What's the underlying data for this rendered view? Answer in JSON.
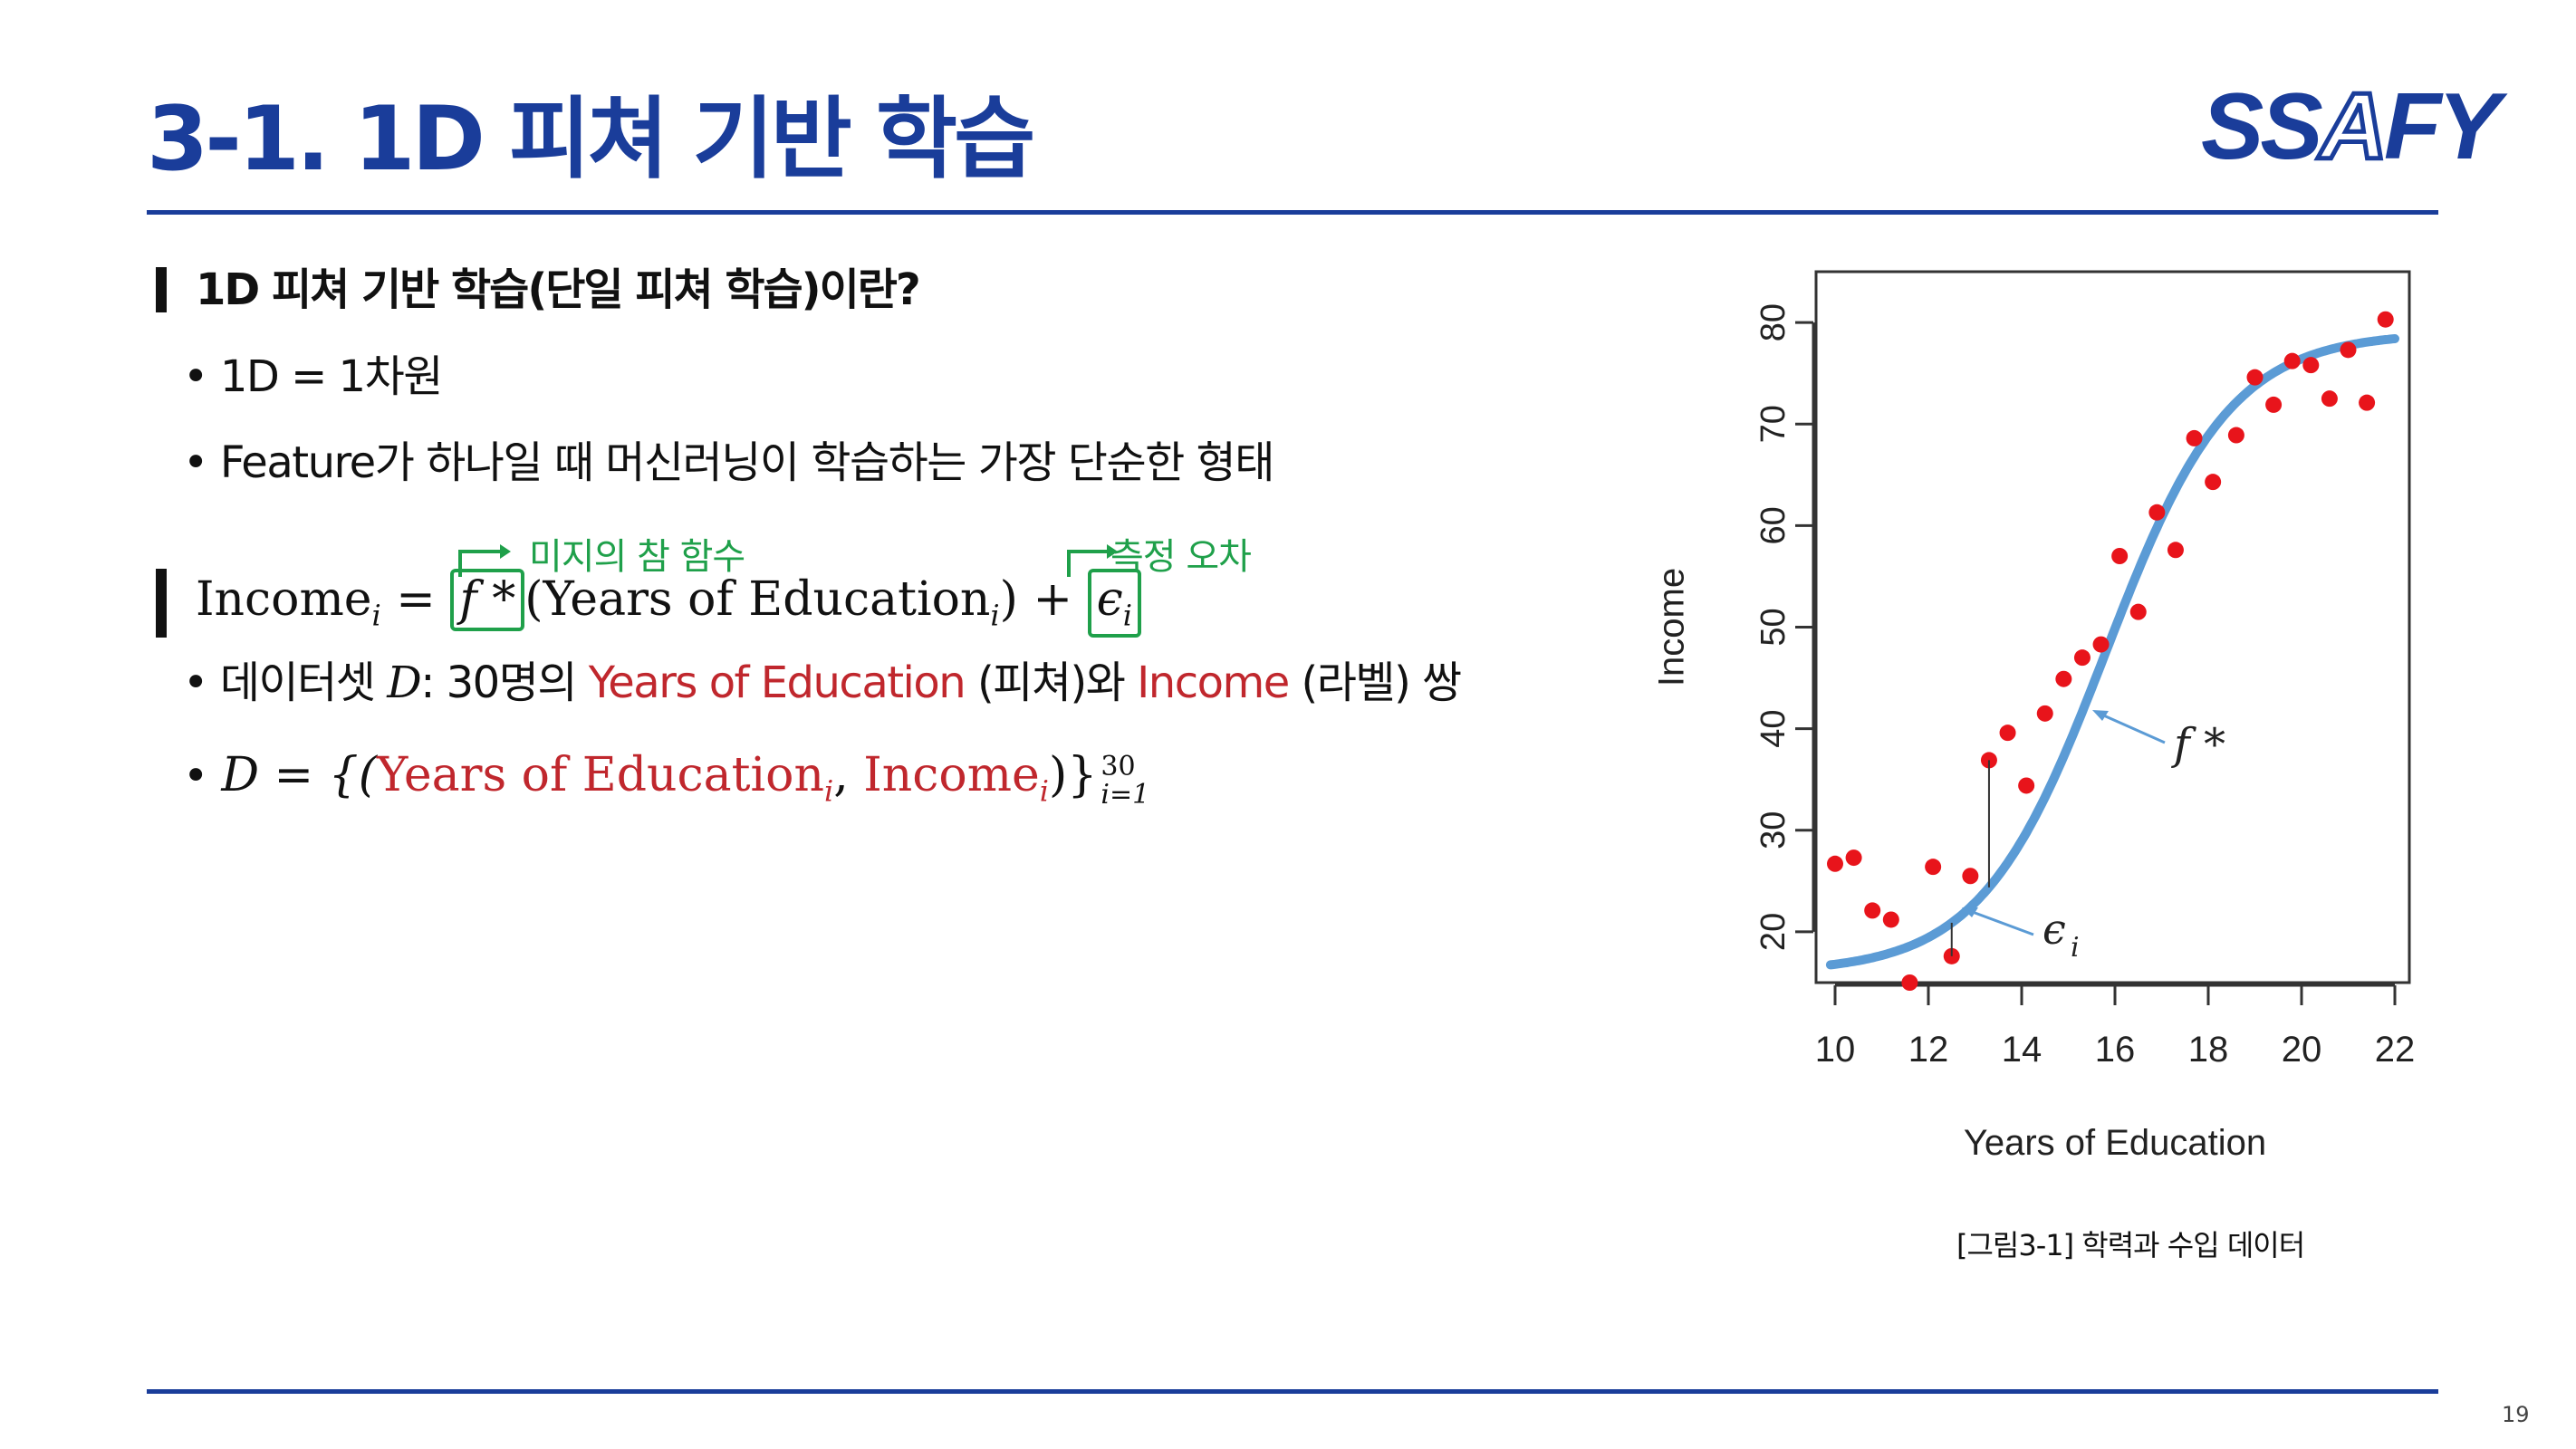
{
  "header": {
    "title": "3-1. 1D 피쳐 기반 학습",
    "logo": {
      "part1": "SS",
      "part2": "A",
      "part3": "FY"
    }
  },
  "section1": {
    "heading": "1D 피쳐 기반 학습(단일 피쳐 학습)이란?",
    "bullets": [
      "1D = 1차원",
      "Feature가 하나일 때 머신러닝이 학습하는 가장 단순한 형태"
    ]
  },
  "formula": {
    "income": "Income",
    "subscript": "i",
    "equals": " = ",
    "f_star": "f *",
    "feature": "(Years of Education",
    "close": ")",
    "plus": " + ",
    "epsilon": "ϵ",
    "note_f": "미지의 참 함수",
    "note_eps": "측정 오차"
  },
  "dataset": {
    "bullet_prefix": "데이터셋 ",
    "D": "D",
    "bullet_mid": ": 30명의 ",
    "feature_name": "Years of Education",
    "feature_tag": " (피쳐)와 ",
    "label_name": "Income",
    "label_tag": " (라벨) 쌍",
    "set_lhs": "D = {(",
    "set_feature": "Years of Education",
    "set_comma": ", ",
    "set_label": "Income",
    "set_close": ")}",
    "set_sup": "30",
    "set_sub": "i=1"
  },
  "chart_data": {
    "type": "scatter",
    "xlabel": "Years of Education",
    "ylabel": "Income",
    "xlim": [
      10,
      22
    ],
    "ylim": [
      15,
      85
    ],
    "x_ticks": [
      10,
      12,
      14,
      16,
      18,
      20,
      22
    ],
    "y_ticks": [
      20,
      30,
      40,
      50,
      60,
      70,
      80
    ],
    "points": [
      {
        "x": 10.0,
        "y": 26.7
      },
      {
        "x": 10.4,
        "y": 27.3
      },
      {
        "x": 10.8,
        "y": 22.1
      },
      {
        "x": 11.2,
        "y": 21.2
      },
      {
        "x": 11.6,
        "y": 15.0
      },
      {
        "x": 12.1,
        "y": 26.4
      },
      {
        "x": 12.5,
        "y": 17.6
      },
      {
        "x": 12.9,
        "y": 25.5
      },
      {
        "x": 13.3,
        "y": 36.9
      },
      {
        "x": 13.7,
        "y": 39.6
      },
      {
        "x": 14.1,
        "y": 34.4
      },
      {
        "x": 14.5,
        "y": 41.5
      },
      {
        "x": 14.9,
        "y": 44.9
      },
      {
        "x": 15.3,
        "y": 47.0
      },
      {
        "x": 15.7,
        "y": 48.3
      },
      {
        "x": 16.1,
        "y": 57.0
      },
      {
        "x": 16.5,
        "y": 51.5
      },
      {
        "x": 16.9,
        "y": 61.3
      },
      {
        "x": 17.3,
        "y": 57.6
      },
      {
        "x": 17.7,
        "y": 68.6
      },
      {
        "x": 18.1,
        "y": 64.3
      },
      {
        "x": 18.6,
        "y": 68.9
      },
      {
        "x": 19.0,
        "y": 74.6
      },
      {
        "x": 19.4,
        "y": 71.9
      },
      {
        "x": 19.8,
        "y": 76.2
      },
      {
        "x": 20.2,
        "y": 75.8
      },
      {
        "x": 20.6,
        "y": 72.5
      },
      {
        "x": 21.0,
        "y": 77.3
      },
      {
        "x": 21.4,
        "y": 72.1
      },
      {
        "x": 21.8,
        "y": 80.3
      }
    ],
    "curve_label": "f *",
    "error_label": "ϵ",
    "error_label_sub": "i",
    "colors": {
      "points": "#e8141b",
      "curve": "#5b9bd5"
    }
  },
  "caption": "[그림3-1] 학력과 수입 데이터",
  "page_number": "19"
}
